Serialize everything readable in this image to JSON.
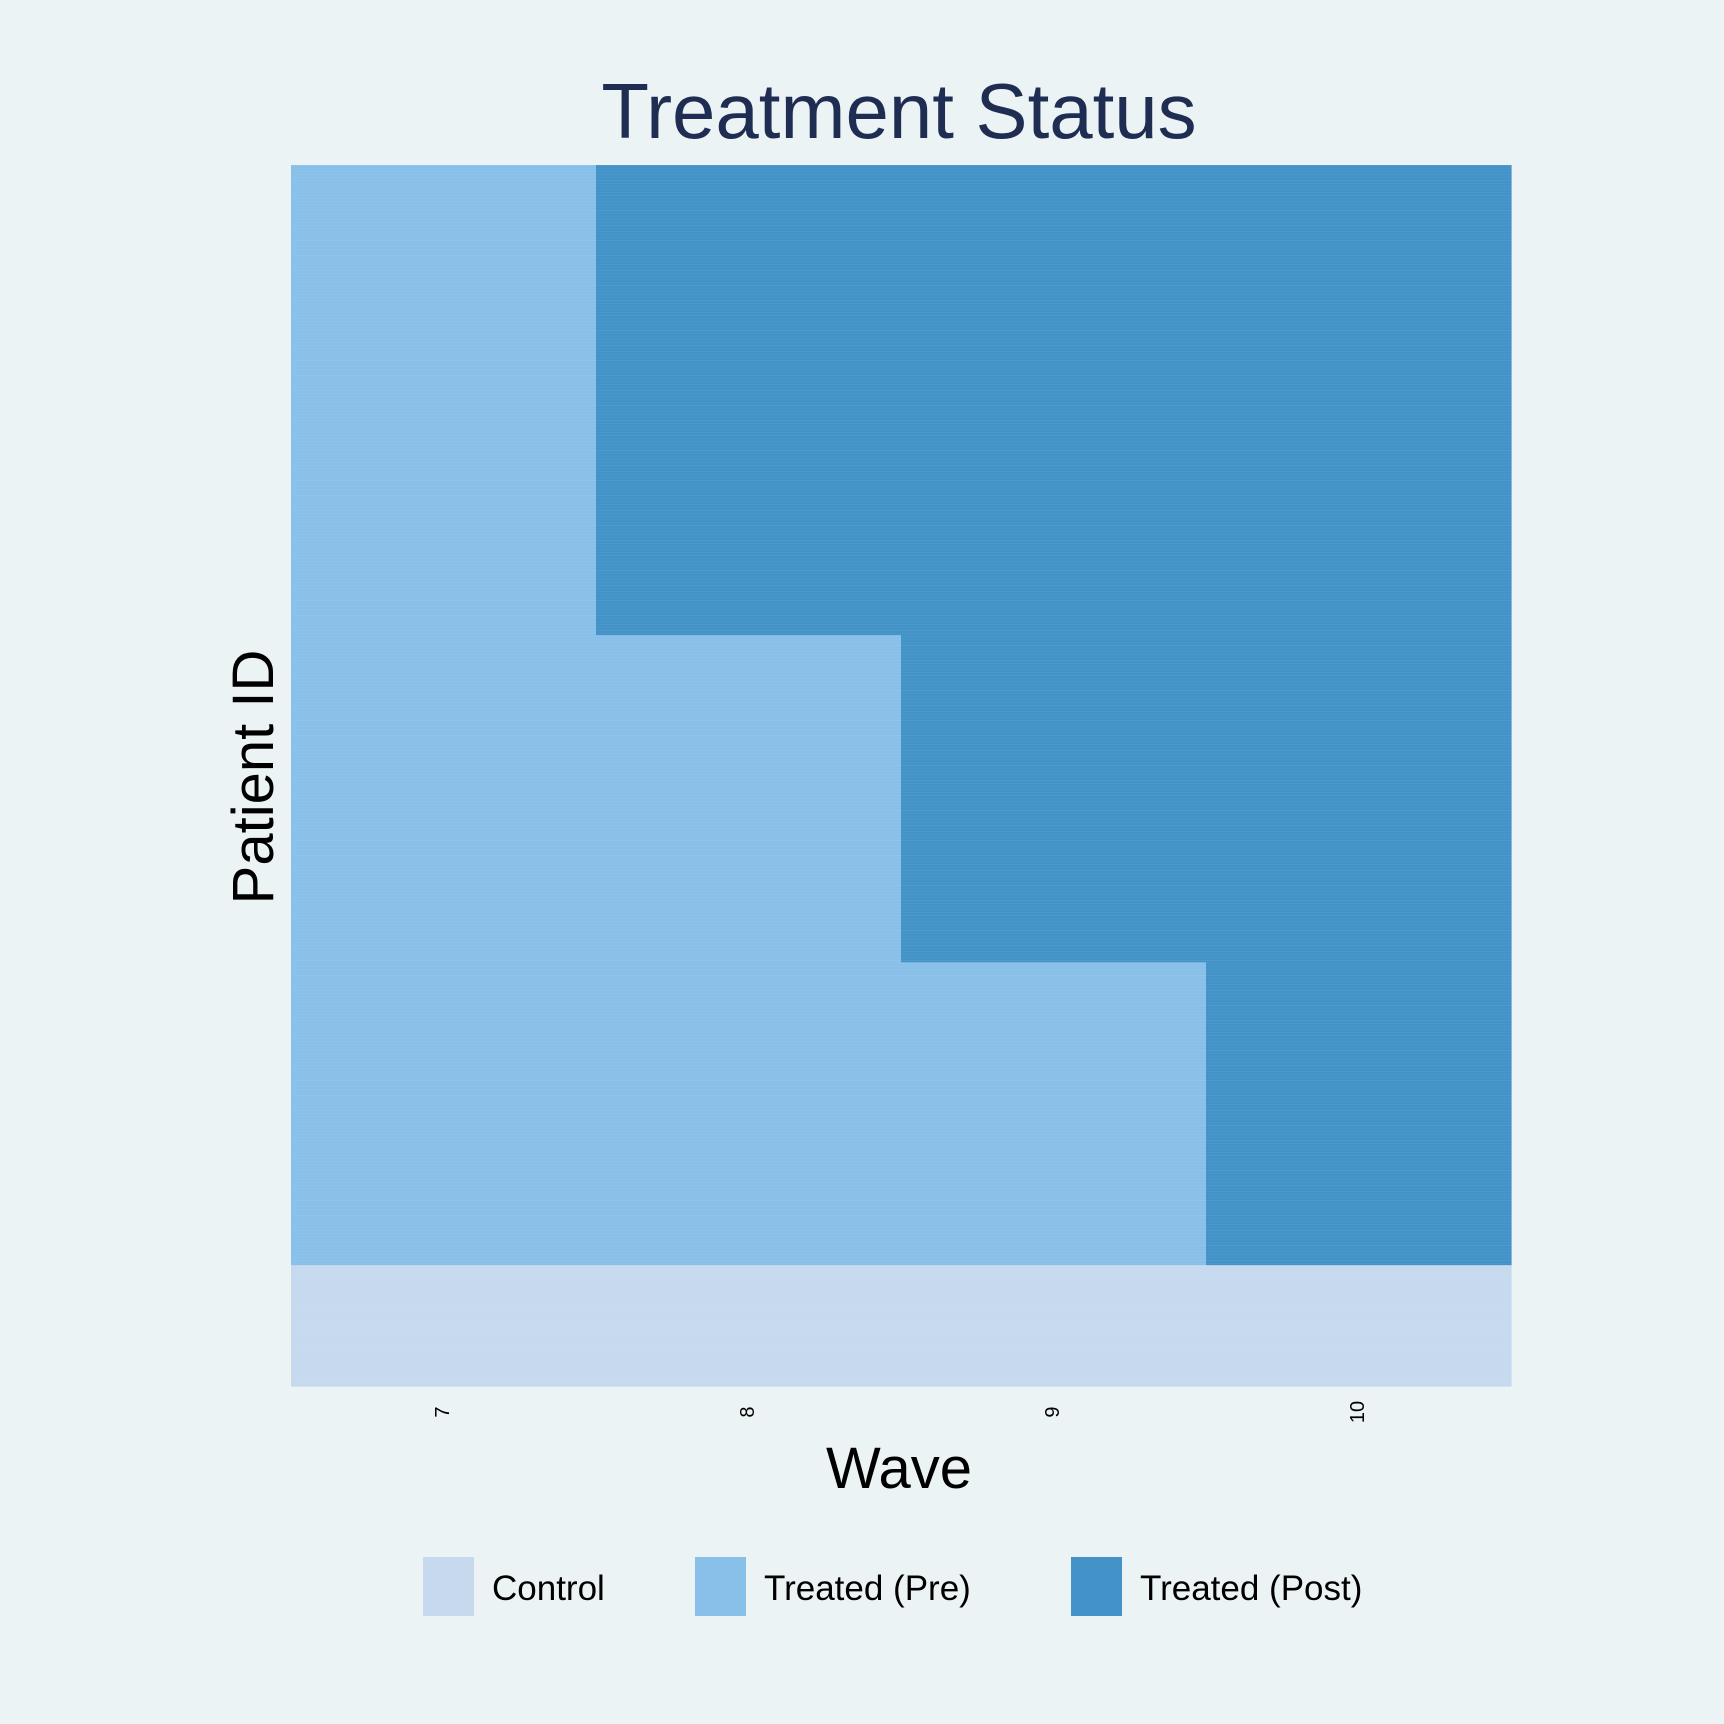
{
  "chart_data": {
    "type": "heatmap",
    "title": "Treatment Status",
    "xlabel": "Wave",
    "ylabel": "Patient ID",
    "x": [
      "7",
      "8",
      "9",
      "10"
    ],
    "legend_position": "bottom",
    "grid": false,
    "categories": [
      {
        "name": "Control",
        "color": "#c6d9ee"
      },
      {
        "name": "Treated (Pre)",
        "color": "#88c0e9"
      },
      {
        "name": "Treated (Post)",
        "color": "#4493c8"
      }
    ],
    "groups": [
      {
        "share": 0.385,
        "status": [
          "Treated (Pre)",
          "Treated (Post)",
          "Treated (Post)",
          "Treated (Post)"
        ]
      },
      {
        "share": 0.268,
        "status": [
          "Treated (Pre)",
          "Treated (Pre)",
          "Treated (Post)",
          "Treated (Post)"
        ]
      },
      {
        "share": 0.248,
        "status": [
          "Treated (Pre)",
          "Treated (Pre)",
          "Treated (Pre)",
          "Treated (Post)"
        ]
      },
      {
        "share": 0.099,
        "status": [
          "Control",
          "Control",
          "Control",
          "Control"
        ]
      }
    ]
  }
}
